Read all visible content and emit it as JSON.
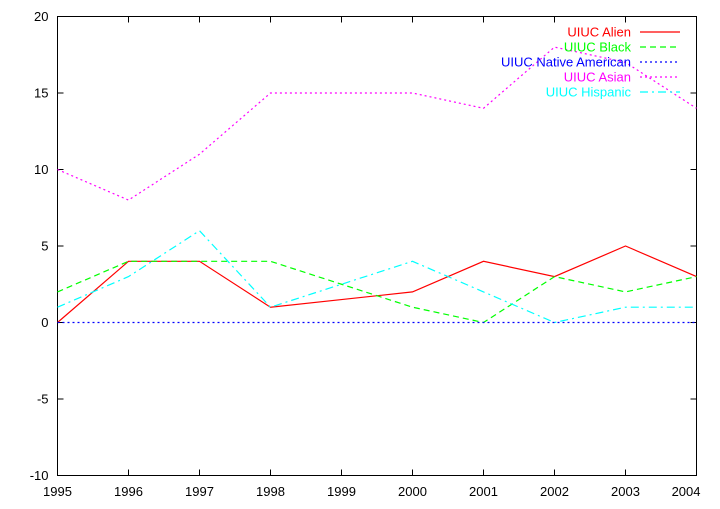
{
  "chart_data": {
    "type": "line",
    "title": "",
    "xlabel": "",
    "ylabel": "",
    "x": [
      1995,
      1996,
      1997,
      1998,
      1999,
      2000,
      2001,
      2002,
      2003,
      2004
    ],
    "xlim": [
      1995,
      2004
    ],
    "ylim": [
      -10,
      20
    ],
    "xticks": [
      "1995",
      "1996",
      "1997",
      "1998",
      "1999",
      "2000",
      "2001",
      "2002",
      "2003",
      "2004"
    ],
    "yticks": [
      "-10",
      "-5",
      "0",
      "5",
      "10",
      "15",
      "20"
    ],
    "grid": false,
    "legend_position": "top-right",
    "series": [
      {
        "name": "UIUC Alien",
        "color": "#ff0000",
        "dash": "solid",
        "values": [
          0,
          4,
          4,
          1,
          1.5,
          2,
          4,
          3,
          5,
          3
        ]
      },
      {
        "name": "UIUC Black",
        "color": "#00ff00",
        "dash": "dashed",
        "values": [
          2,
          4,
          4,
          4,
          2.5,
          1,
          0,
          3,
          2,
          3
        ]
      },
      {
        "name": "UIUC Native American",
        "color": "#0000ff",
        "dash": "dotted",
        "values": [
          0,
          0,
          0,
          0,
          0,
          0,
          0,
          0,
          0,
          0
        ]
      },
      {
        "name": "UIUC Asian",
        "color": "#ff00ff",
        "dash": "dotted",
        "values": [
          10,
          8,
          11,
          15,
          15,
          15,
          14,
          18,
          17,
          14
        ]
      },
      {
        "name": "UIUC Hispanic",
        "color": "#00ffff",
        "dash": "dashdot",
        "values": [
          1,
          3,
          6,
          1,
          2.5,
          4,
          2,
          0,
          1,
          1
        ]
      }
    ]
  }
}
